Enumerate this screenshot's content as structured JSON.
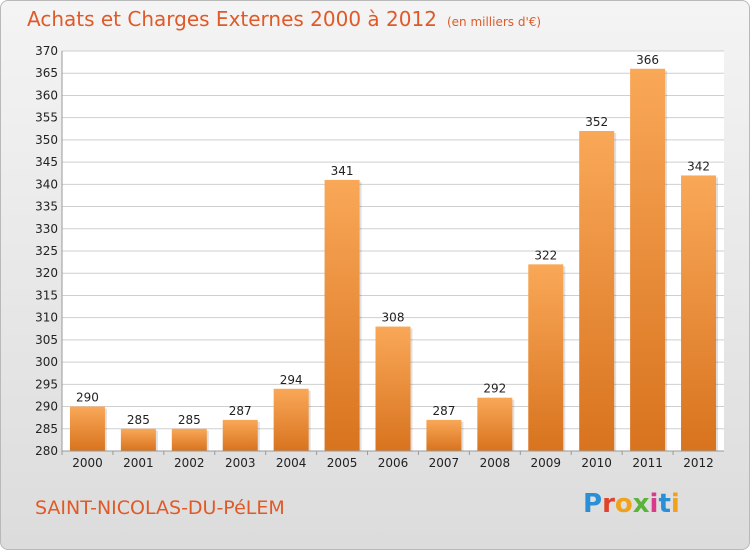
{
  "header": {
    "title": "Achats et Charges Externes 2000 à 2012",
    "unit": "(en milliers d'€)"
  },
  "footer": {
    "town": "SAINT-NICOLAS-DU-PéLEM",
    "logo_letters": [
      "P",
      "r",
      "o",
      "x",
      "i",
      "t",
      "i"
    ],
    "logo_colors": [
      "#2a8fd6",
      "#e0432a",
      "#f0a21c",
      "#5bb33a",
      "#d93b8a",
      "#2a8fd6",
      "#f0a21c"
    ]
  },
  "colors": {
    "bar_light": "#f9a858",
    "bar_dark": "#d8731e",
    "grid": "#cfcfcf",
    "axis_text": "#222222"
  },
  "chart_data": {
    "type": "bar",
    "categories": [
      "2000",
      "2001",
      "2002",
      "2003",
      "2004",
      "2005",
      "2006",
      "2007",
      "2008",
      "2009",
      "2010",
      "2011",
      "2012"
    ],
    "values": [
      290,
      285,
      285,
      287,
      294,
      341,
      308,
      287,
      292,
      322,
      352,
      366,
      342
    ],
    "ylim": [
      280,
      370
    ],
    "yticks": [
      280,
      285,
      290,
      295,
      300,
      305,
      310,
      315,
      320,
      325,
      330,
      335,
      340,
      345,
      350,
      355,
      360,
      365,
      370
    ],
    "grid": true,
    "data_labels": true
  }
}
